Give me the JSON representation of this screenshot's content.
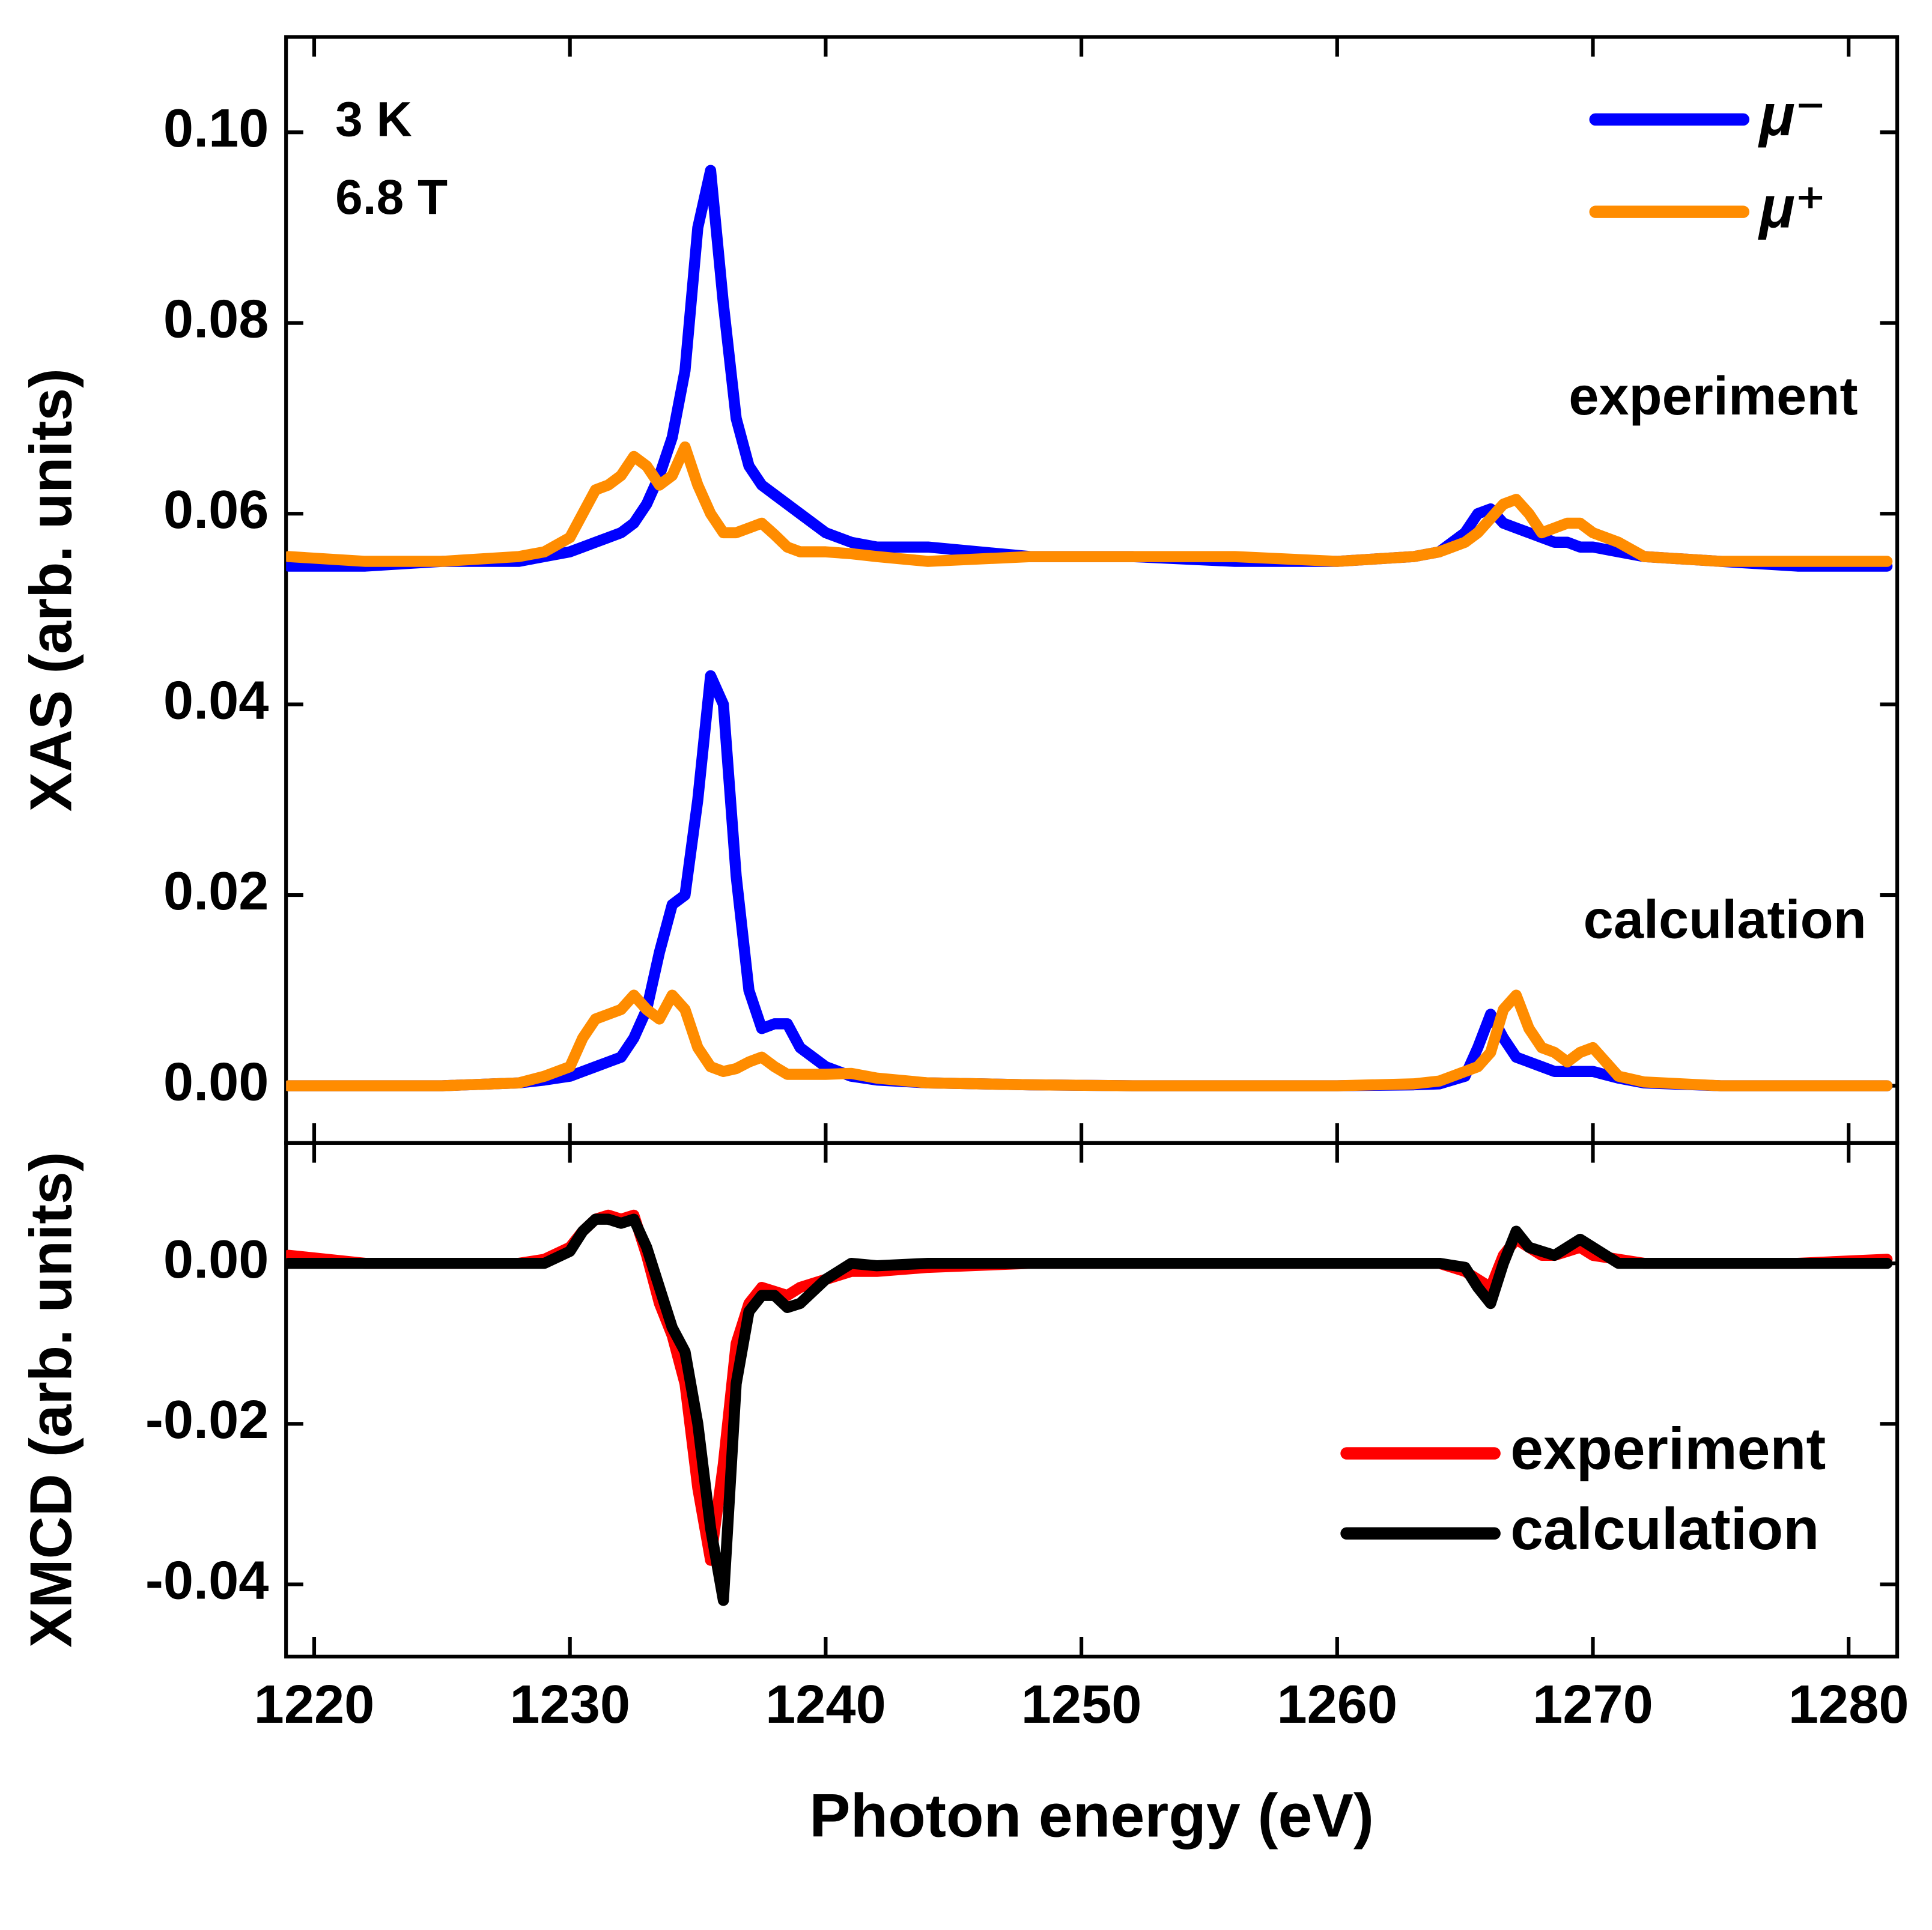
{
  "chart_data": [
    {
      "type": "line",
      "ylabel": "XAS (arb. units)",
      "annotations": [
        "3 K",
        "6.8 T",
        "experiment",
        "calculation"
      ],
      "x": [
        1219,
        1222,
        1225,
        1228,
        1229,
        1230,
        1230.5,
        1231,
        1231.5,
        1232,
        1232.5,
        1233,
        1233.5,
        1234,
        1234.5,
        1235,
        1235.5,
        1236,
        1236.5,
        1237,
        1237.5,
        1238,
        1238.5,
        1239,
        1240,
        1241,
        1242,
        1244,
        1248,
        1252,
        1256,
        1260,
        1263,
        1264,
        1265,
        1265.5,
        1266,
        1266.5,
        1267,
        1267.5,
        1268,
        1268.5,
        1269,
        1269.5,
        1270,
        1271,
        1272,
        1275,
        1278,
        1281.5
      ],
      "series": [
        {
          "name": "μ⁻",
          "color": "#0000ff",
          "values": [
            0.0545,
            0.0545,
            0.055,
            0.055,
            0.0555,
            0.056,
            0.0565,
            0.057,
            0.0575,
            0.058,
            0.059,
            0.061,
            0.064,
            0.068,
            0.075,
            0.09,
            0.096,
            0.082,
            0.07,
            0.065,
            0.063,
            0.062,
            0.061,
            0.06,
            0.058,
            0.057,
            0.0565,
            0.0565,
            0.0555,
            0.0555,
            0.055,
            0.055,
            0.0555,
            0.056,
            0.058,
            0.06,
            0.0605,
            0.059,
            0.0585,
            0.058,
            0.0575,
            0.057,
            0.057,
            0.0565,
            0.0565,
            0.056,
            0.0555,
            0.055,
            0.0545,
            0.0545
          ]
        },
        {
          "name": "μ⁺",
          "color": "#ff8c00",
          "values": [
            0.0555,
            0.055,
            0.055,
            0.0555,
            0.056,
            0.0575,
            0.06,
            0.0625,
            0.063,
            0.064,
            0.066,
            0.065,
            0.063,
            0.064,
            0.067,
            0.063,
            0.06,
            0.058,
            0.058,
            0.0585,
            0.059,
            0.0578,
            0.0565,
            0.056,
            0.056,
            0.0558,
            0.0555,
            0.055,
            0.0555,
            0.0555,
            0.0555,
            0.055,
            0.0555,
            0.056,
            0.057,
            0.058,
            0.0595,
            0.061,
            0.0615,
            0.06,
            0.058,
            0.0585,
            0.059,
            0.059,
            0.058,
            0.057,
            0.0555,
            0.055,
            0.055,
            0.055
          ]
        },
        {
          "color": "#0000ff",
          "values": [
            0,
            0,
            0,
            0.0003,
            0.0006,
            0.001,
            0.0015,
            0.002,
            0.0025,
            0.003,
            0.005,
            0.008,
            0.014,
            0.019,
            0.02,
            0.03,
            0.043,
            0.04,
            0.022,
            0.01,
            0.006,
            0.0065,
            0.0065,
            0.004,
            0.002,
            0.001,
            0.0006,
            0.0003,
            0.0001,
            0,
            0,
            0,
            0.0001,
            0.0002,
            0.001,
            0.004,
            0.0075,
            0.005,
            0.003,
            0.0025,
            0.002,
            0.0015,
            0.0015,
            0.0015,
            0.0015,
            0.0008,
            0.0003,
            0,
            0,
            0
          ]
        },
        {
          "color": "#ff8c00",
          "values": [
            0,
            0,
            0,
            0.0003,
            0.001,
            0.002,
            0.005,
            0.007,
            0.0075,
            0.008,
            0.0095,
            0.008,
            0.007,
            0.0095,
            0.008,
            0.004,
            0.002,
            0.0015,
            0.0018,
            0.0025,
            0.003,
            0.002,
            0.0012,
            0.0012,
            0.0012,
            0.0013,
            0.0008,
            0.0003,
            0.0001,
            0,
            0,
            0,
            0.0002,
            0.0005,
            0.0015,
            0.002,
            0.0035,
            0.008,
            0.0095,
            0.006,
            0.004,
            0.0035,
            0.0025,
            0.0035,
            0.004,
            0.001,
            0.0004,
            0,
            0,
            0
          ]
        }
      ],
      "xlim": [
        1218.9,
        1281.9
      ],
      "xticks": [
        1220,
        1230,
        1240,
        1250,
        1260,
        1270,
        1280
      ],
      "ylim": [
        -0.006,
        0.11
      ],
      "yticks": [
        {
          "value": 0,
          "label": "0.00"
        },
        {
          "value": 0.02,
          "label": "0.02"
        },
        {
          "value": 0.04,
          "label": "0.04"
        },
        {
          "value": 0.06,
          "label": "0.06"
        },
        {
          "value": 0.08,
          "label": "0.08"
        },
        {
          "value": 0.1,
          "label": "0.10"
        }
      ],
      "legend": "upper right"
    },
    {
      "type": "line",
      "ylabel": "XMCD (arb. units)",
      "xlabel": "Photon energy (eV)",
      "x": [
        1219,
        1222,
        1225,
        1228,
        1229,
        1230,
        1230.5,
        1231,
        1231.5,
        1232,
        1232.5,
        1233,
        1233.5,
        1234,
        1234.5,
        1235,
        1235.5,
        1236,
        1236.5,
        1237,
        1237.5,
        1238,
        1238.5,
        1239,
        1240,
        1241,
        1242,
        1244,
        1248,
        1252,
        1256,
        1260,
        1263,
        1264,
        1265,
        1265.5,
        1266,
        1266.5,
        1267,
        1267.5,
        1268,
        1268.5,
        1269,
        1269.5,
        1270,
        1271,
        1272,
        1275,
        1278,
        1281.5
      ],
      "series": [
        {
          "name": "experiment",
          "color": "#ff0000",
          "values": [
            0.001,
            0,
            0,
            0,
            0.0005,
            0.002,
            0.004,
            0.0055,
            0.006,
            0.0055,
            0.006,
            0.001,
            -0.005,
            -0.009,
            -0.015,
            -0.028,
            -0.037,
            -0.025,
            -0.01,
            -0.005,
            -0.003,
            -0.0035,
            -0.004,
            -0.003,
            -0.002,
            -0.001,
            -0.001,
            -0.0005,
            0,
            0,
            0,
            0,
            0,
            0,
            -0.001,
            -0.002,
            -0.003,
            0.001,
            0.003,
            0.002,
            0.001,
            0.001,
            0.0015,
            0.002,
            0.001,
            0.0005,
            0,
            0,
            0,
            0.0005
          ]
        },
        {
          "name": "calculation",
          "color": "#000000",
          "values": [
            0,
            0,
            0,
            0,
            0,
            0.0015,
            0.004,
            0.0055,
            0.0055,
            0.005,
            0.0055,
            0.002,
            -0.003,
            -0.008,
            -0.011,
            -0.02,
            -0.033,
            -0.042,
            -0.015,
            -0.006,
            -0.004,
            -0.004,
            -0.0055,
            -0.005,
            -0.002,
            0,
            -0.0003,
            0,
            0,
            0,
            0,
            0,
            0,
            0,
            -0.0005,
            -0.003,
            -0.005,
            0,
            0.004,
            0.002,
            0.0015,
            0.001,
            0.002,
            0.003,
            0.002,
            0,
            0,
            0,
            0,
            0
          ]
        }
      ],
      "xlim": [
        1218.9,
        1281.9
      ],
      "xticks": [
        1220,
        1230,
        1240,
        1250,
        1260,
        1270,
        1280
      ],
      "ylim": [
        -0.049,
        0.015
      ],
      "yticks": [
        {
          "value": -0.04,
          "label": "-0.04"
        },
        {
          "value": -0.02,
          "label": "-0.02"
        },
        {
          "value": 0,
          "label": "0.00"
        }
      ],
      "legend": "lower right"
    }
  ]
}
